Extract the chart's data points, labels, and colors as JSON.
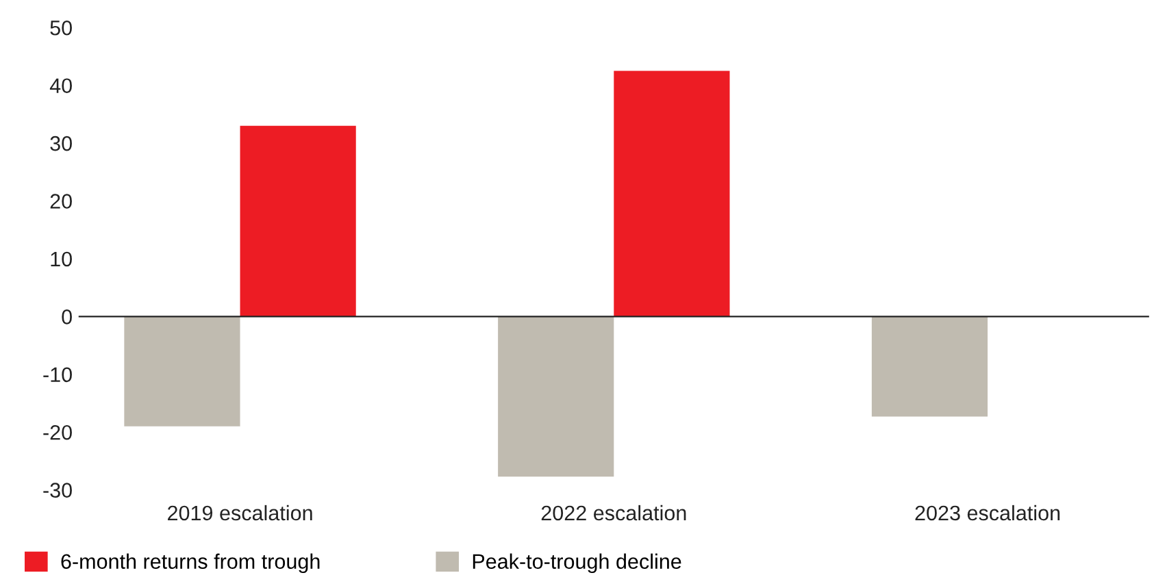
{
  "chart_data": {
    "type": "bar",
    "categories": [
      "2019 escalation",
      "2022 escalation",
      "2023 escalation"
    ],
    "series": [
      {
        "name": "6-month returns from trough",
        "color": "#ed1c24",
        "values": [
          33,
          42.5,
          null
        ]
      },
      {
        "name": "Peak-to-trough decline",
        "color": "#c0bbb0",
        "values": [
          -19,
          -27.7,
          -17.3
        ]
      }
    ],
    "ylim": [
      -30,
      50
    ],
    "yticks": [
      -30,
      -20,
      -10,
      0,
      10,
      20,
      30,
      40,
      50
    ],
    "legend": "bottom left"
  }
}
